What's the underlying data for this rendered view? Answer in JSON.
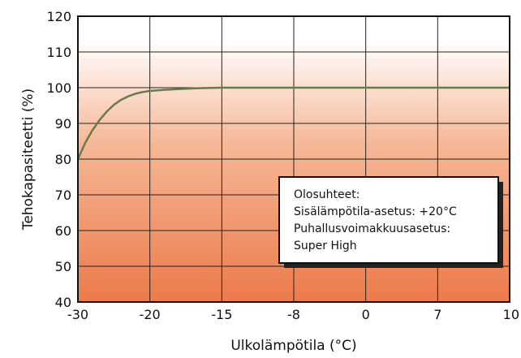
{
  "chart_data": {
    "type": "line",
    "xlabel": "Ulkolämpötila (°C)",
    "ylabel": "Tehokapasiteetti (%)",
    "ylim": [
      40,
      120
    ],
    "y_ticks": [
      40,
      50,
      60,
      70,
      80,
      90,
      100,
      110,
      120
    ],
    "x_categories": [
      "-30",
      "-20",
      "-15",
      "-8",
      "0",
      "7",
      "10"
    ],
    "x": [
      -30,
      -29,
      -28,
      -27,
      -26,
      -25,
      -24,
      -23,
      -22,
      -21,
      -20,
      -19,
      -18,
      -17,
      -16,
      -15,
      -8,
      0,
      7,
      10
    ],
    "series": [
      {
        "values": [
          80,
          84.5,
          88,
          90.9,
          93.3,
          95.2,
          96.6,
          97.6,
          98.3,
          98.8,
          99.1,
          99.4,
          99.6,
          99.8,
          99.9,
          100,
          100,
          100,
          100,
          100
        ],
        "color": "#6b7a4a"
      }
    ],
    "grid": true,
    "background_gradient": {
      "top": "#ffffff",
      "bottom": "#ec7a4a"
    },
    "annotation": {
      "lines": [
        "Olosuhteet:",
        "Sisälämpötila-asetus: +20°C",
        "Puhallusvoimakkuusasetus:",
        "Super High"
      ]
    }
  }
}
